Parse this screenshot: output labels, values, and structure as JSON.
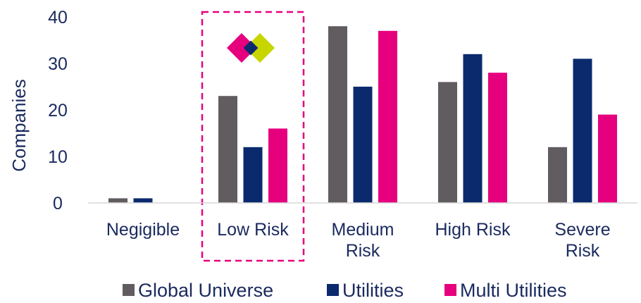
{
  "chart_data": {
    "type": "bar",
    "title": "",
    "xlabel": "",
    "ylabel": "Companies",
    "ylim": [
      0,
      40
    ],
    "yticks": [
      0,
      10,
      20,
      30,
      40
    ],
    "categories": [
      [
        "Negigible"
      ],
      [
        "Low Risk"
      ],
      [
        "Medium",
        "Risk"
      ],
      [
        "High Risk"
      ],
      [
        "Severe",
        "Risk"
      ]
    ],
    "series": [
      {
        "name": "Global Universe",
        "color": "#605c60",
        "values": [
          1,
          23,
          38,
          26,
          12
        ]
      },
      {
        "name": "Utilities",
        "color": "#0b2a6e",
        "values": [
          1,
          12,
          25,
          32,
          31
        ]
      },
      {
        "name": "Multi Utilities",
        "color": "#e6007e",
        "values": [
          0,
          16,
          37,
          28,
          19
        ]
      }
    ],
    "legend_position": "bottom",
    "grid": false,
    "highlight": {
      "category": "Low Risk",
      "style": "dashed-box",
      "color": "#e6007e",
      "logo": "diamond-logo-icon",
      "logo_colors": [
        "#e6007e",
        "#c7d600",
        "#0b2a6e"
      ]
    }
  }
}
